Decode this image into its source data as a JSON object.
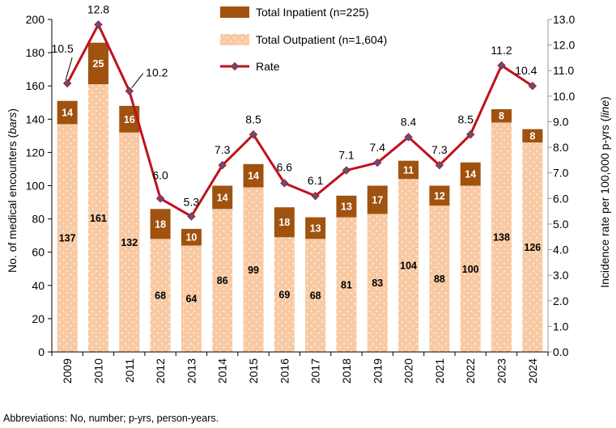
{
  "chart_data": {
    "type": "bar",
    "categories": [
      "2009",
      "2010",
      "2011",
      "2012",
      "2013",
      "2014",
      "2015",
      "2016",
      "2017",
      "2018",
      "2019",
      "2020",
      "2021",
      "2022",
      "2023",
      "2024"
    ],
    "series": [
      {
        "name": "Total Outpatient (n=1,604)",
        "kind": "bar",
        "values": [
          137,
          161,
          132,
          68,
          64,
          86,
          99,
          69,
          68,
          81,
          83,
          104,
          88,
          100,
          138,
          126
        ]
      },
      {
        "name": "Total Inpatient (n=225)",
        "kind": "bar",
        "values": [
          14,
          25,
          16,
          18,
          10,
          14,
          14,
          18,
          13,
          13,
          17,
          11,
          12,
          14,
          8,
          8
        ]
      },
      {
        "name": "Rate",
        "kind": "line",
        "axis": "right",
        "values": [
          10.5,
          12.8,
          10.2,
          6.0,
          5.3,
          7.3,
          8.5,
          6.6,
          6.1,
          7.1,
          7.4,
          8.4,
          7.3,
          8.5,
          11.2,
          10.4
        ]
      }
    ],
    "rate_labels": [
      "10.5",
      "12.8",
      "10.2",
      "6.0",
      "5.3",
      "7.3",
      "8.5",
      "6.6",
      "6.1",
      "7.1",
      "7.4",
      "8.4",
      "7.3",
      "8.5",
      "11.2",
      "10.4"
    ],
    "legend": [
      "Total Inpatient (n=225)",
      "Total Outpatient (n=1,604)",
      "Rate"
    ],
    "legend_position": "top-right",
    "ylabel_main": "No. of medical encounters (",
    "ylabel_italic": "bars",
    "ylabel_tail": ")",
    "y2label_main": "Incidence rate per 100,000 p-yrs (",
    "y2label_italic": "line",
    "y2label_tail": ")",
    "ylim": [
      0,
      200
    ],
    "y_ticks": [
      "0",
      "20",
      "40",
      "60",
      "80",
      "100",
      "120",
      "140",
      "160",
      "180",
      "200"
    ],
    "y2lim": [
      0,
      13
    ],
    "y2_ticks": [
      "0.0",
      "1.0",
      "2.0",
      "3.0",
      "4.0",
      "5.0",
      "6.0",
      "7.0",
      "8.0",
      "9.0",
      "10.0",
      "11.0",
      "12.0",
      "13.0"
    ],
    "colors": {
      "outpatient": "#f8c9a2",
      "inpatient": "#a0520f",
      "line": "#c0111d",
      "marker": "#4a5a8a",
      "axis": "#000000",
      "right_axis": "#999999"
    }
  },
  "footnote": "Abbreviations: No, number; p-yrs, person-years."
}
